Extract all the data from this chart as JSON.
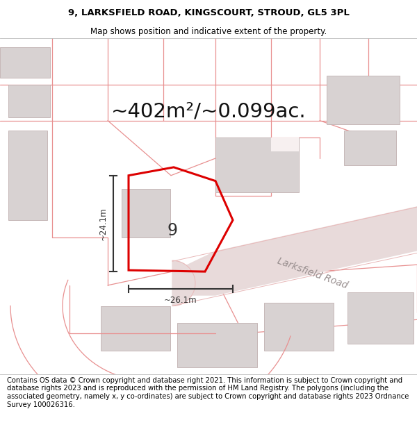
{
  "title_line1": "9, LARKSFIELD ROAD, KINGSCOURT, STROUD, GL5 3PL",
  "title_line2": "Map shows position and indicative extent of the property.",
  "area_text": "~402m²/~0.099ac.",
  "label_9": "9",
  "label_road": "Larksfield Road",
  "dim_vertical": "~24.1m",
  "dim_horizontal": "~26.1m",
  "footer_text": "Contains OS data © Crown copyright and database right 2021. This information is subject to Crown copyright and database rights 2023 and is reproduced with the permission of HM Land Registry. The polygons (including the associated geometry, namely x, y co-ordinates) are subject to Crown copyright and database rights 2023 Ordnance Survey 100026316.",
  "map_bg": "#f7f0f0",
  "road_color": "#e8b8b8",
  "building_fill": "#d8d2d2",
  "building_edge": "#c0b0b0",
  "plot_outline_color": "#dd0000",
  "plot_lw": 2.2,
  "dim_line_color": "#333333",
  "title_fontsize": 9.5,
  "subtitle_fontsize": 8.5,
  "area_fontsize": 21,
  "footer_fontsize": 7.2,
  "road_label_fontsize": 10,
  "label9_fontsize": 17,
  "parcel_color": "#e89090",
  "parcel_lw": 0.9,
  "road_fill": "#e8dada"
}
